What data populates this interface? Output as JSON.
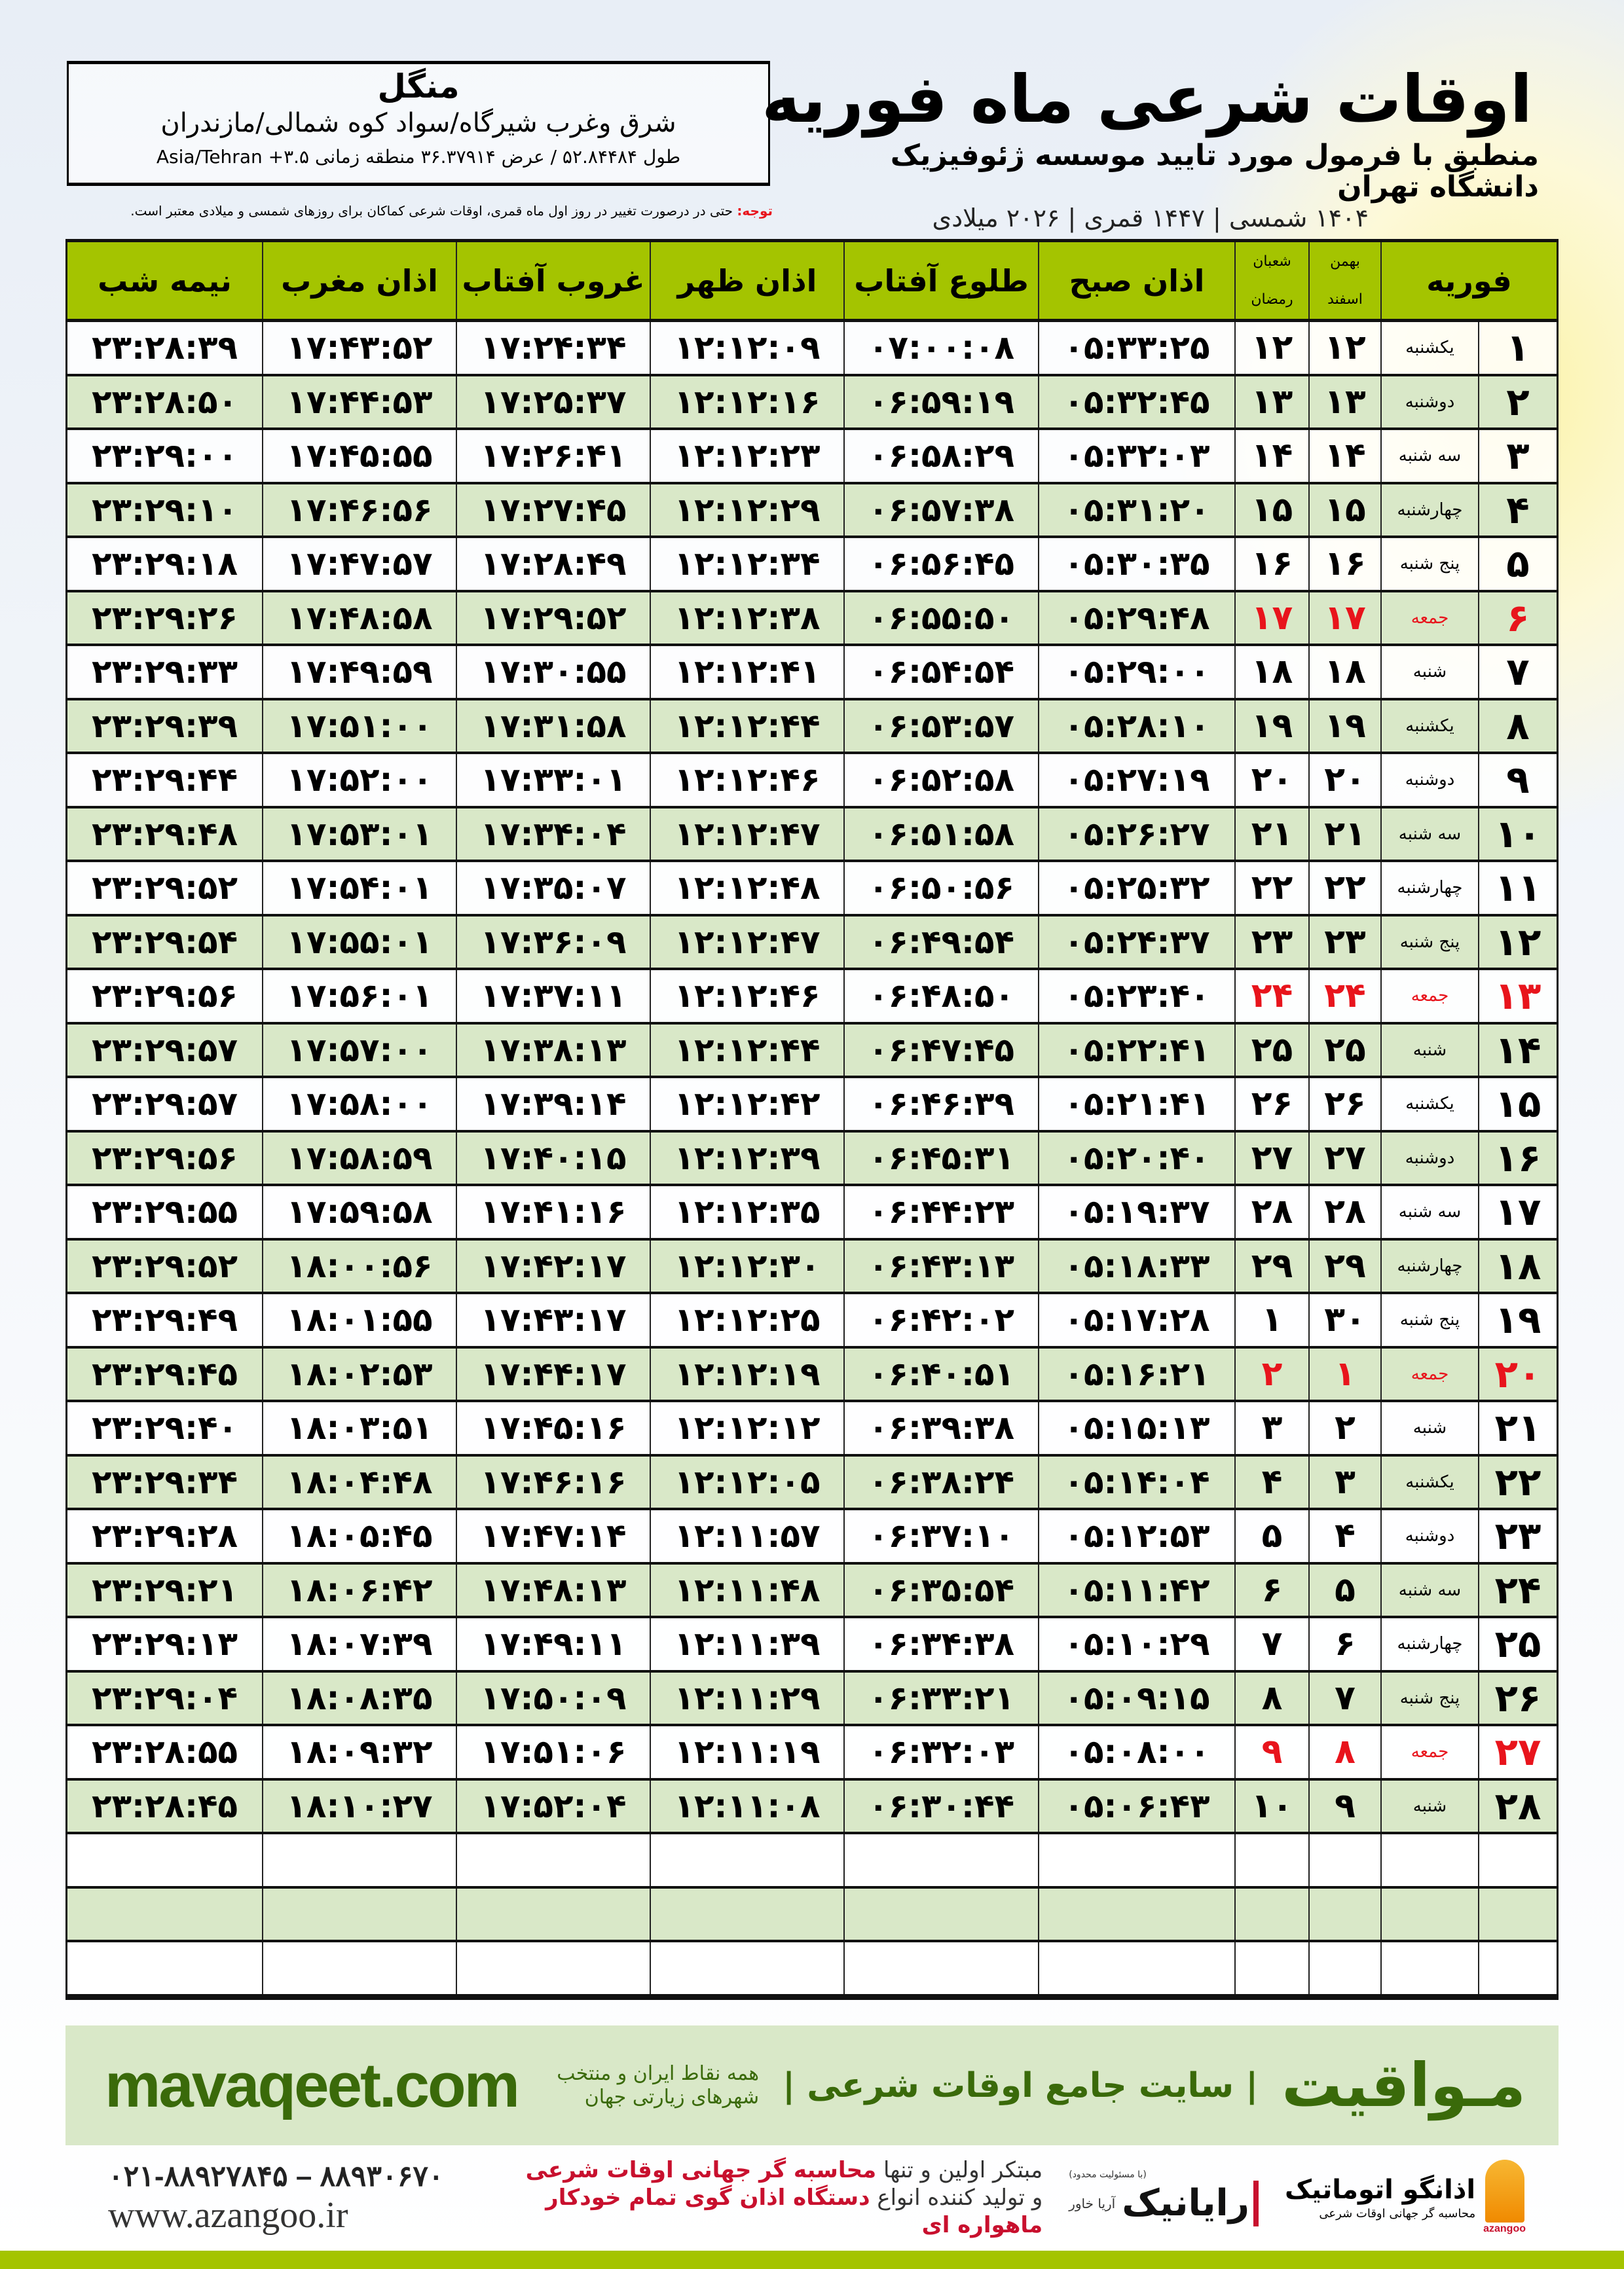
{
  "location": {
    "city": "منگل",
    "region": "شرق وغرب شیرگاه/سواد کوه شمالی/مازندران",
    "coords": "طول ۵۲.۸۴۴۸۴ / عرض ۳۶.۳۷۹۱۴ منطقه زمانی ۳.۵+ Asia/Tehran"
  },
  "header": {
    "title": "اوقات شرعی ماه فوریه",
    "subtitle": "منطبق با فرمول مورد تایید موسسه ژئوفیزیک دانشگاه تهران",
    "years": "۱۴۰۴ شمسی | ۱۴۴۷ قمری | ۲۰۲۶ میلادی"
  },
  "note": {
    "label": "توجه:",
    "text": " حتی در درصورت تغییر در روز اول ماه قمری، اوقات شرعی کماکان برای روزهای شمسی و میلادی معتبر است."
  },
  "colors": {
    "header_green": "#a4c400",
    "row_green": "#d9e8c8",
    "holiday_red": "#e8141c",
    "brand_green": "#3a6a0a"
  },
  "table": {
    "columns": {
      "month": "فوریه",
      "solar_top": "بهمن",
      "solar_bottom": "اسفند",
      "lunar_top": "شعبان",
      "lunar_bottom": "رمضان",
      "fajr": "اذان صبح",
      "sunrise": "طلوع آفتاب",
      "dhuhr": "اذان ظهر",
      "sunset": "غروب آفتاب",
      "maghrib": "اذان مغرب",
      "midnight": "نیمه شب"
    },
    "holiday_weekday": "جمعه",
    "rows": [
      [
        "۱",
        "یکشنبه",
        "۱۲",
        "۱۲",
        "۰۵:۳۳:۲۵",
        "۰۷:۰۰:۰۸",
        "۱۲:۱۲:۰۹",
        "۱۷:۲۴:۳۴",
        "۱۷:۴۳:۵۲",
        "۲۳:۲۸:۳۹"
      ],
      [
        "۲",
        "دوشنبه",
        "۱۳",
        "۱۳",
        "۰۵:۳۲:۴۵",
        "۰۶:۵۹:۱۹",
        "۱۲:۱۲:۱۶",
        "۱۷:۲۵:۳۷",
        "۱۷:۴۴:۵۳",
        "۲۳:۲۸:۵۰"
      ],
      [
        "۳",
        "سه شنبه",
        "۱۴",
        "۱۴",
        "۰۵:۳۲:۰۳",
        "۰۶:۵۸:۲۹",
        "۱۲:۱۲:۲۳",
        "۱۷:۲۶:۴۱",
        "۱۷:۴۵:۵۵",
        "۲۳:۲۹:۰۰"
      ],
      [
        "۴",
        "چهارشنبه",
        "۱۵",
        "۱۵",
        "۰۵:۳۱:۲۰",
        "۰۶:۵۷:۳۸",
        "۱۲:۱۲:۲۹",
        "۱۷:۲۷:۴۵",
        "۱۷:۴۶:۵۶",
        "۲۳:۲۹:۱۰"
      ],
      [
        "۵",
        "پنج شنبه",
        "۱۶",
        "۱۶",
        "۰۵:۳۰:۳۵",
        "۰۶:۵۶:۴۵",
        "۱۲:۱۲:۳۴",
        "۱۷:۲۸:۴۹",
        "۱۷:۴۷:۵۷",
        "۲۳:۲۹:۱۸"
      ],
      [
        "۶",
        "جمعه",
        "۱۷",
        "۱۷",
        "۰۵:۲۹:۴۸",
        "۰۶:۵۵:۵۰",
        "۱۲:۱۲:۳۸",
        "۱۷:۲۹:۵۲",
        "۱۷:۴۸:۵۸",
        "۲۳:۲۹:۲۶"
      ],
      [
        "۷",
        "شنبه",
        "۱۸",
        "۱۸",
        "۰۵:۲۹:۰۰",
        "۰۶:۵۴:۵۴",
        "۱۲:۱۲:۴۱",
        "۱۷:۳۰:۵۵",
        "۱۷:۴۹:۵۹",
        "۲۳:۲۹:۳۳"
      ],
      [
        "۸",
        "یکشنبه",
        "۱۹",
        "۱۹",
        "۰۵:۲۸:۱۰",
        "۰۶:۵۳:۵۷",
        "۱۲:۱۲:۴۴",
        "۱۷:۳۱:۵۸",
        "۱۷:۵۱:۰۰",
        "۲۳:۲۹:۳۹"
      ],
      [
        "۹",
        "دوشنبه",
        "۲۰",
        "۲۰",
        "۰۵:۲۷:۱۹",
        "۰۶:۵۲:۵۸",
        "۱۲:۱۲:۴۶",
        "۱۷:۳۳:۰۱",
        "۱۷:۵۲:۰۰",
        "۲۳:۲۹:۴۴"
      ],
      [
        "۱۰",
        "سه شنبه",
        "۲۱",
        "۲۱",
        "۰۵:۲۶:۲۷",
        "۰۶:۵۱:۵۸",
        "۱۲:۱۲:۴۷",
        "۱۷:۳۴:۰۴",
        "۱۷:۵۳:۰۱",
        "۲۳:۲۹:۴۸"
      ],
      [
        "۱۱",
        "چهارشنبه",
        "۲۲",
        "۲۲",
        "۰۵:۲۵:۳۲",
        "۰۶:۵۰:۵۶",
        "۱۲:۱۲:۴۸",
        "۱۷:۳۵:۰۷",
        "۱۷:۵۴:۰۱",
        "۲۳:۲۹:۵۲"
      ],
      [
        "۱۲",
        "پنج شنبه",
        "۲۳",
        "۲۳",
        "۰۵:۲۴:۳۷",
        "۰۶:۴۹:۵۴",
        "۱۲:۱۲:۴۷",
        "۱۷:۳۶:۰۹",
        "۱۷:۵۵:۰۱",
        "۲۳:۲۹:۵۴"
      ],
      [
        "۱۳",
        "جمعه",
        "۲۴",
        "۲۴",
        "۰۵:۲۳:۴۰",
        "۰۶:۴۸:۵۰",
        "۱۲:۱۲:۴۶",
        "۱۷:۳۷:۱۱",
        "۱۷:۵۶:۰۱",
        "۲۳:۲۹:۵۶"
      ],
      [
        "۱۴",
        "شنبه",
        "۲۵",
        "۲۵",
        "۰۵:۲۲:۴۱",
        "۰۶:۴۷:۴۵",
        "۱۲:۱۲:۴۴",
        "۱۷:۳۸:۱۳",
        "۱۷:۵۷:۰۰",
        "۲۳:۲۹:۵۷"
      ],
      [
        "۱۵",
        "یکشنبه",
        "۲۶",
        "۲۶",
        "۰۵:۲۱:۴۱",
        "۰۶:۴۶:۳۹",
        "۱۲:۱۲:۴۲",
        "۱۷:۳۹:۱۴",
        "۱۷:۵۸:۰۰",
        "۲۳:۲۹:۵۷"
      ],
      [
        "۱۶",
        "دوشنبه",
        "۲۷",
        "۲۷",
        "۰۵:۲۰:۴۰",
        "۰۶:۴۵:۳۱",
        "۱۲:۱۲:۳۹",
        "۱۷:۴۰:۱۵",
        "۱۷:۵۸:۵۹",
        "۲۳:۲۹:۵۶"
      ],
      [
        "۱۷",
        "سه شنبه",
        "۲۸",
        "۲۸",
        "۰۵:۱۹:۳۷",
        "۰۶:۴۴:۲۳",
        "۱۲:۱۲:۳۵",
        "۱۷:۴۱:۱۶",
        "۱۷:۵۹:۵۸",
        "۲۳:۲۹:۵۵"
      ],
      [
        "۱۸",
        "چهارشنبه",
        "۲۹",
        "۲۹",
        "۰۵:۱۸:۳۳",
        "۰۶:۴۳:۱۳",
        "۱۲:۱۲:۳۰",
        "۱۷:۴۲:۱۷",
        "۱۸:۰۰:۵۶",
        "۲۳:۲۹:۵۲"
      ],
      [
        "۱۹",
        "پنج شنبه",
        "۳۰",
        "۱",
        "۰۵:۱۷:۲۸",
        "۰۶:۴۲:۰۲",
        "۱۲:۱۲:۲۵",
        "۱۷:۴۳:۱۷",
        "۱۸:۰۱:۵۵",
        "۲۳:۲۹:۴۹"
      ],
      [
        "۲۰",
        "جمعه",
        "۱",
        "۲",
        "۰۵:۱۶:۲۱",
        "۰۶:۴۰:۵۱",
        "۱۲:۱۲:۱۹",
        "۱۷:۴۴:۱۷",
        "۱۸:۰۲:۵۳",
        "۲۳:۲۹:۴۵"
      ],
      [
        "۲۱",
        "شنبه",
        "۲",
        "۳",
        "۰۵:۱۵:۱۳",
        "۰۶:۳۹:۳۸",
        "۱۲:۱۲:۱۲",
        "۱۷:۴۵:۱۶",
        "۱۸:۰۳:۵۱",
        "۲۳:۲۹:۴۰"
      ],
      [
        "۲۲",
        "یکشنبه",
        "۳",
        "۴",
        "۰۵:۱۴:۰۴",
        "۰۶:۳۸:۲۴",
        "۱۲:۱۲:۰۵",
        "۱۷:۴۶:۱۶",
        "۱۸:۰۴:۴۸",
        "۲۳:۲۹:۳۴"
      ],
      [
        "۲۳",
        "دوشنبه",
        "۴",
        "۵",
        "۰۵:۱۲:۵۳",
        "۰۶:۳۷:۱۰",
        "۱۲:۱۱:۵۷",
        "۱۷:۴۷:۱۴",
        "۱۸:۰۵:۴۵",
        "۲۳:۲۹:۲۸"
      ],
      [
        "۲۴",
        "سه شنبه",
        "۵",
        "۶",
        "۰۵:۱۱:۴۲",
        "۰۶:۳۵:۵۴",
        "۱۲:۱۱:۴۸",
        "۱۷:۴۸:۱۳",
        "۱۸:۰۶:۴۲",
        "۲۳:۲۹:۲۱"
      ],
      [
        "۲۵",
        "چهارشنبه",
        "۶",
        "۷",
        "۰۵:۱۰:۲۹",
        "۰۶:۳۴:۳۸",
        "۱۲:۱۱:۳۹",
        "۱۷:۴۹:۱۱",
        "۱۸:۰۷:۳۹",
        "۲۳:۲۹:۱۳"
      ],
      [
        "۲۶",
        "پنج شنبه",
        "۷",
        "۸",
        "۰۵:۰۹:۱۵",
        "۰۶:۳۳:۲۱",
        "۱۲:۱۱:۲۹",
        "۱۷:۵۰:۰۹",
        "۱۸:۰۸:۳۵",
        "۲۳:۲۹:۰۴"
      ],
      [
        "۲۷",
        "جمعه",
        "۸",
        "۹",
        "۰۵:۰۸:۰۰",
        "۰۶:۳۲:۰۳",
        "۱۲:۱۱:۱۹",
        "۱۷:۵۱:۰۶",
        "۱۸:۰۹:۳۲",
        "۲۳:۲۸:۵۵"
      ],
      [
        "۲۸",
        "شنبه",
        "۹",
        "۱۰",
        "۰۵:۰۶:۴۳",
        "۰۶:۳۰:۴۴",
        "۱۲:۱۱:۰۸",
        "۱۷:۵۲:۰۴",
        "۱۸:۱۰:۲۷",
        "۲۳:۲۸:۴۵"
      ]
    ],
    "empty_rows": 3
  },
  "banner": {
    "brand": "مـواقیت",
    "slogan": "| سایت جامع اوقات شرعی |",
    "slogan2": "همه نقاط ایران و منتخب شهرهای زیارتی جهان",
    "site": "mavaqeet.com"
  },
  "footer": {
    "phones": "۰۲۱-۸۸۹۲۷۸۴۵ – ۸۸۹۳۰۶۷۰",
    "website": "www.azangoo.ir",
    "promo1_a": "مبتکر اولین و تنها ",
    "promo1_b": "محاسبه گر جهانی اوقات شرعی",
    "promo2_a": "و تولید کننده انواع ",
    "promo2_b": "دستگاه اذان گوی تمام خودکار ماهواره ای",
    "rayan_name": "رایانیک",
    "rayan_sub": "آریا خاور",
    "rayan_tiny": "(با مسئولیت محدود)",
    "azan_name": "اذانگو اتوماتیک",
    "azan_sub": "محاسبه گر جهانی اوقات شرعی",
    "azan_en": "azangoo"
  }
}
